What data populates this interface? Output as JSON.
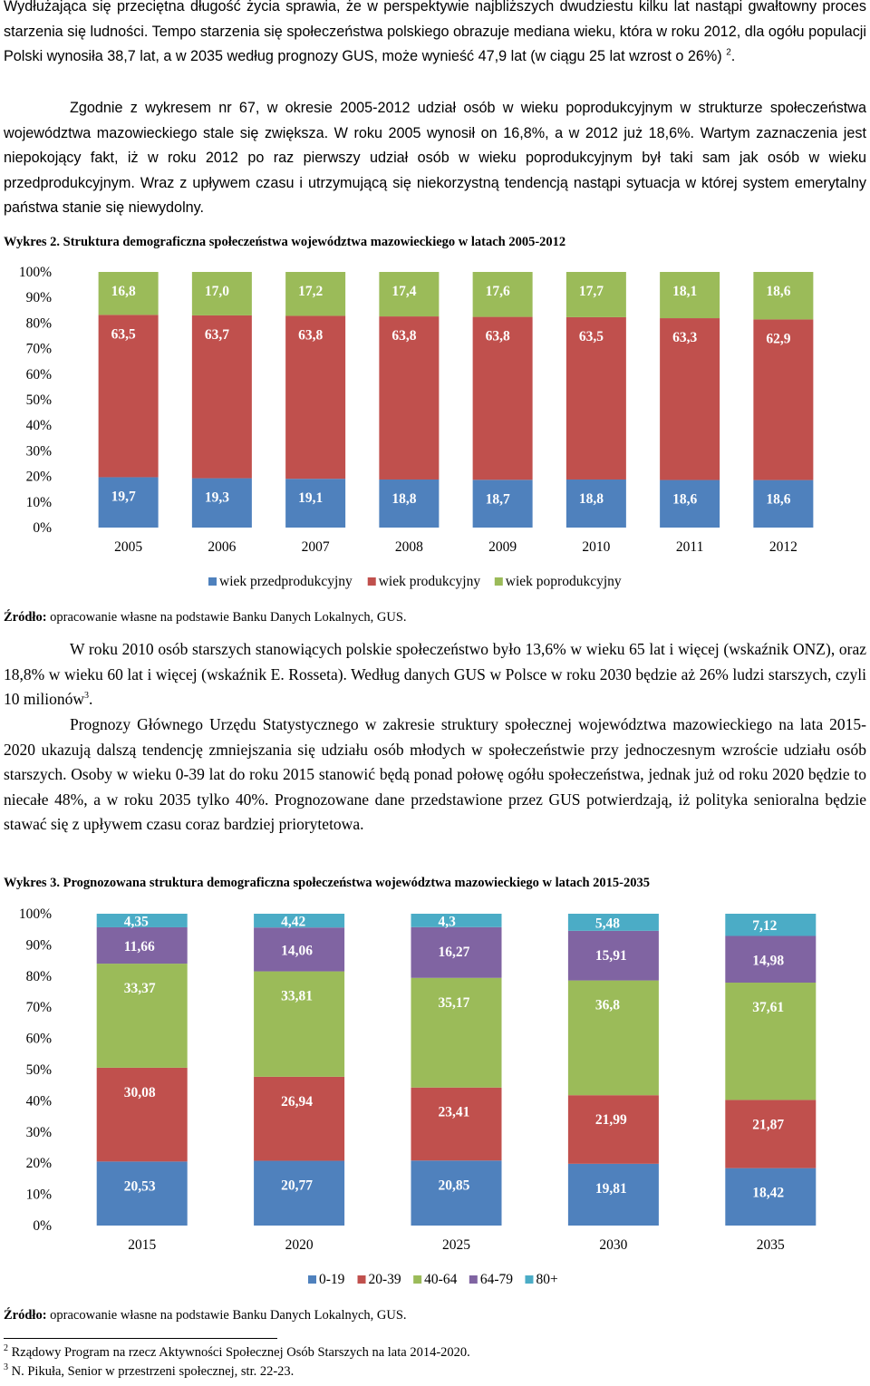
{
  "paragraphs": {
    "p1": "Wydłużająca się przeciętna długość życia sprawia, że w perspektywie najbliższych dwudziestu kilku lat nastąpi gwałtowny proces starzenia się ludności. Tempo starzenia się społeczeństwa polskiego obrazuje mediana wieku, która w roku 2012, dla ogółu populacji Polski wynosiła 38,7 lat, a w 2035 według prognozy GUS, może wynieść 47,9 lat (w ciągu 25 lat wzrost o 26%)",
    "p1_ref": "2",
    "p1_end": ".",
    "p2": "Zgodnie z wykresem nr 67, w okresie 2005-2012 udział osób w wieku poprodukcyjnym w strukturze społeczeństwa województwa mazowieckiego stale się zwiększa. W roku 2005 wynosił on 16,8%, a w 2012 już 18,6%. Wartym zaznaczenia jest niepokojący fakt, iż w roku 2012 po raz pierwszy udział osób w wieku poprodukcyjnym był taki sam jak osób w wieku przedprodukcyjnym. Wraz z upływem czasu i utrzymującą się niekorzystną tendencją nastąpi sytuacja w której system emerytalny państwa stanie się niewydolny.",
    "p3": "W roku 2010 osób starszych stanowiących polskie społeczeństwo było 13,6% w wieku 65 lat i więcej (wskaźnik ONZ), oraz 18,8% w wieku 60 lat i więcej (wskaźnik E. Rosseta). Według danych GUS w Polsce w roku 2030 będzie aż 26% ludzi starszych, czyli 10 milionów",
    "p3_ref": "3",
    "p3_end": ".",
    "p4": "Prognozy Głównego Urzędu Statystycznego w zakresie struktury społecznej województwa mazowieckiego na lata 2015-2020 ukazują dalszą tendencję zmniejszania się udziału osób młodych w społeczeństwie przy jednoczesnym wzroście udziału osób starszych. Osoby w wieku 0-39 lat do roku 2015 stanowić będą ponad połowę ogółu społeczeństwa, jednak już od roku 2020 będzie to niecałe 48%, a w roku 2035 tylko 40%. Prognozowane dane przedstawione przez GUS potwierdzają, iż polityka senioralna będzie stawać się z upływem czasu coraz bardziej priorytetowa."
  },
  "chart1_caption": "Wykres 2. Struktura demograficzna społeczeństwa województwa mazowieckiego w latach 2005-2012",
  "chart2_caption": "Wykres 3. Prognozowana struktura demograficzna społeczeństwa województwa mazowieckiego w latach 2015-2035",
  "source_label": "Źródło:",
  "source_text": " opracowanie własne na podstawie Banku Danych Lokalnych, GUS.",
  "footnotes": [
    {
      "num": "2",
      "text": "Rządowy Program na rzecz Aktywności Społecznej Osób Starszych na lata 2014-2020."
    },
    {
      "num": "3",
      "text": "N. Pikuła, Senior w przestrzeni społecznej,  str. 22-23."
    }
  ],
  "chart_data": [
    {
      "type": "bar",
      "stacked": "percent",
      "title": "Wykres 2. Struktura demograficzna społeczeństwa województwa mazowieckiego w latach 2005-2012",
      "categories": [
        "2005",
        "2006",
        "2007",
        "2008",
        "2009",
        "2010",
        "2011",
        "2012"
      ],
      "yticks": [
        "0%",
        "10%",
        "20%",
        "30%",
        "40%",
        "50%",
        "60%",
        "70%",
        "80%",
        "90%",
        "100%"
      ],
      "ylim": [
        0,
        100
      ],
      "series": [
        {
          "name": "wiek przedprodukcyjny",
          "color": "#4f81bd",
          "values": [
            19.7,
            19.3,
            19.1,
            18.8,
            18.7,
            18.8,
            18.6,
            18.6
          ],
          "labels": [
            "19,7",
            "19,3",
            "19,1",
            "18,8",
            "18,7",
            "18,8",
            "18,6",
            "18,6"
          ]
        },
        {
          "name": "wiek produkcyjny",
          "color": "#c0504d",
          "values": [
            63.5,
            63.7,
            63.8,
            63.8,
            63.8,
            63.5,
            63.3,
            62.9
          ],
          "labels": [
            "63,5",
            "63,7",
            "63,8",
            "63,8",
            "63,8",
            "63,5",
            "63,3",
            "62,9"
          ]
        },
        {
          "name": "wiek poprodukcyjny",
          "color": "#9bbb59",
          "values": [
            16.8,
            17.0,
            17.2,
            17.4,
            17.6,
            17.7,
            18.1,
            18.6
          ],
          "labels": [
            "16,8",
            "17,0",
            "17,2",
            "17,4",
            "17,6",
            "17,7",
            "18,1",
            "18,6"
          ]
        }
      ],
      "legend_position": "bottom"
    },
    {
      "type": "bar",
      "stacked": "percent",
      "title": "Wykres 3. Prognozowana struktura demograficzna społeczeństwa województwa mazowieckiego w latach 2015-2035",
      "categories": [
        "2015",
        "2020",
        "2025",
        "2030",
        "2035"
      ],
      "yticks": [
        "0%",
        "10%",
        "20%",
        "30%",
        "40%",
        "50%",
        "60%",
        "70%",
        "80%",
        "90%",
        "100%"
      ],
      "ylim": [
        0,
        100
      ],
      "series": [
        {
          "name": "0-19",
          "color": "#4f81bd",
          "values": [
            20.53,
            20.77,
            20.85,
            19.81,
            18.42
          ],
          "labels": [
            "20,53",
            "20,77",
            "20,85",
            "19,81",
            "18,42"
          ]
        },
        {
          "name": "20-39",
          "color": "#c0504d",
          "values": [
            30.08,
            26.94,
            23.41,
            21.99,
            21.87
          ],
          "labels": [
            "30,08",
            "26,94",
            "23,41",
            "21,99",
            "21,87"
          ]
        },
        {
          "name": "40-64",
          "color": "#9bbb59",
          "values": [
            33.37,
            33.81,
            35.17,
            36.8,
            37.61
          ],
          "labels": [
            "33,37",
            "33,81",
            "35,17",
            "36,8",
            "37,61"
          ]
        },
        {
          "name": "64-79",
          "color": "#8064a2",
          "values": [
            11.66,
            14.06,
            16.27,
            15.91,
            14.98
          ],
          "labels": [
            "11,66",
            "14,06",
            "16,27",
            "15,91",
            "14,98"
          ]
        },
        {
          "name": "80+",
          "color": "#4bacc6",
          "values": [
            4.35,
            4.42,
            4.3,
            5.48,
            7.12
          ],
          "labels": [
            "4,35",
            "4,42",
            "4,3",
            "5,48",
            "7,12"
          ]
        }
      ],
      "legend_position": "bottom"
    }
  ]
}
